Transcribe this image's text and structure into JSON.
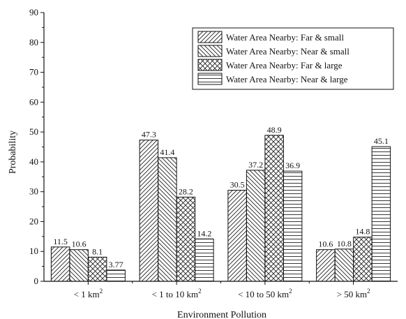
{
  "chart_data": {
    "type": "bar",
    "xlabel": "Environment Pollution",
    "ylabel": "Probability",
    "ylim": [
      0,
      90
    ],
    "yticks": [
      0,
      10,
      20,
      30,
      40,
      50,
      60,
      70,
      80,
      90
    ],
    "grid": false,
    "legend_position": "top-right",
    "categories": [
      {
        "label": "< 1 km",
        "sup": "2"
      },
      {
        "label": "< 1 to 10 km",
        "sup": "2"
      },
      {
        "label": "< 10 to 50 km",
        "sup": "2"
      },
      {
        "label": "> 50 km",
        "sup": "2"
      }
    ],
    "series": [
      {
        "name": "Water Area Nearby: Far & small",
        "pattern": "diag-right",
        "values": [
          11.5,
          47.3,
          30.5,
          10.6
        ],
        "labels": [
          "11.5",
          "47.3",
          "30.5",
          "10.6"
        ]
      },
      {
        "name": "Water Area Nearby: Near & small",
        "pattern": "diag-left",
        "values": [
          10.6,
          41.4,
          37.2,
          10.8
        ],
        "labels": [
          "10.6",
          "41.4",
          "37.2",
          "10.8"
        ]
      },
      {
        "name": "Water Area Nearby: Far & large",
        "pattern": "crosshatch",
        "values": [
          8.1,
          28.2,
          48.9,
          14.8
        ],
        "labels": [
          "8.1",
          "28.2",
          "48.9",
          "14.8"
        ]
      },
      {
        "name": "Water Area Nearby: Near & large",
        "pattern": "horizontal",
        "values": [
          3.77,
          14.2,
          36.9,
          45.1
        ],
        "labels": [
          "3.77",
          "14.2",
          "36.9",
          "45.1"
        ]
      }
    ]
  }
}
